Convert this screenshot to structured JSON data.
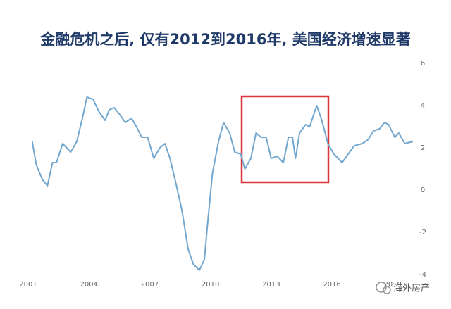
{
  "chart_data": {
    "type": "line",
    "title": "金融危机之后, 仅有2012到2016年, 美国经济增速显著",
    "watermark": "海外房产",
    "x": [
      2001.2,
      2001.4,
      2001.7,
      2001.95,
      2002.2,
      2002.4,
      2002.7,
      2002.9,
      2003.1,
      2003.4,
      2003.7,
      2003.9,
      2004.2,
      2004.5,
      2004.8,
      2005.0,
      2005.25,
      2005.5,
      2005.8,
      2006.1,
      2006.35,
      2006.6,
      2006.9,
      2007.2,
      2007.5,
      2007.75,
      2008.0,
      2008.3,
      2008.6,
      2008.9,
      2009.15,
      2009.45,
      2009.7,
      2009.85,
      2010.1,
      2010.4,
      2010.65,
      2010.95,
      2011.2,
      2011.5,
      2011.7,
      2012.0,
      2012.25,
      2012.5,
      2012.75,
      2013.0,
      2013.3,
      2013.6,
      2013.85,
      2014.05,
      2014.2,
      2014.4,
      2014.7,
      2014.9,
      2015.25,
      2015.5,
      2015.8,
      2016.1,
      2016.5,
      2016.8,
      2017.1,
      2017.5,
      2017.8,
      2018.05,
      2018.35,
      2018.6,
      2018.8,
      2019.1,
      2019.3,
      2019.6,
      2020.0
    ],
    "series": [
      {
        "color": "#72a7cf",
        "values": [
          2.3,
          1.2,
          0.5,
          0.2,
          1.3,
          1.3,
          2.2,
          2.0,
          1.8,
          2.3,
          3.5,
          4.4,
          4.3,
          3.7,
          3.3,
          3.8,
          3.9,
          3.6,
          3.2,
          3.4,
          3.0,
          2.5,
          2.5,
          1.5,
          2.0,
          2.2,
          1.5,
          0.3,
          -1.0,
          -2.8,
          -3.5,
          -3.8,
          -3.3,
          -1.7,
          0.8,
          2.3,
          3.2,
          2.7,
          1.8,
          1.7,
          1.0,
          1.5,
          2.7,
          2.5,
          2.5,
          1.5,
          1.6,
          1.3,
          2.5,
          2.5,
          1.5,
          2.7,
          3.1,
          3.0,
          4.0,
          3.3,
          2.2,
          1.7,
          1.3,
          1.7,
          2.1,
          2.2,
          2.4,
          2.8,
          2.9,
          3.2,
          3.1,
          2.5,
          2.7,
          2.2,
          2.3
        ]
      }
    ],
    "xlim": [
      2001,
      2020
    ],
    "xticks": [
      2001,
      2004,
      2007,
      2010,
      2013,
      2016,
      2019
    ],
    "ylim": [
      -4,
      6
    ],
    "yticks": [
      6,
      4,
      2,
      0,
      -2,
      -4
    ]
  }
}
